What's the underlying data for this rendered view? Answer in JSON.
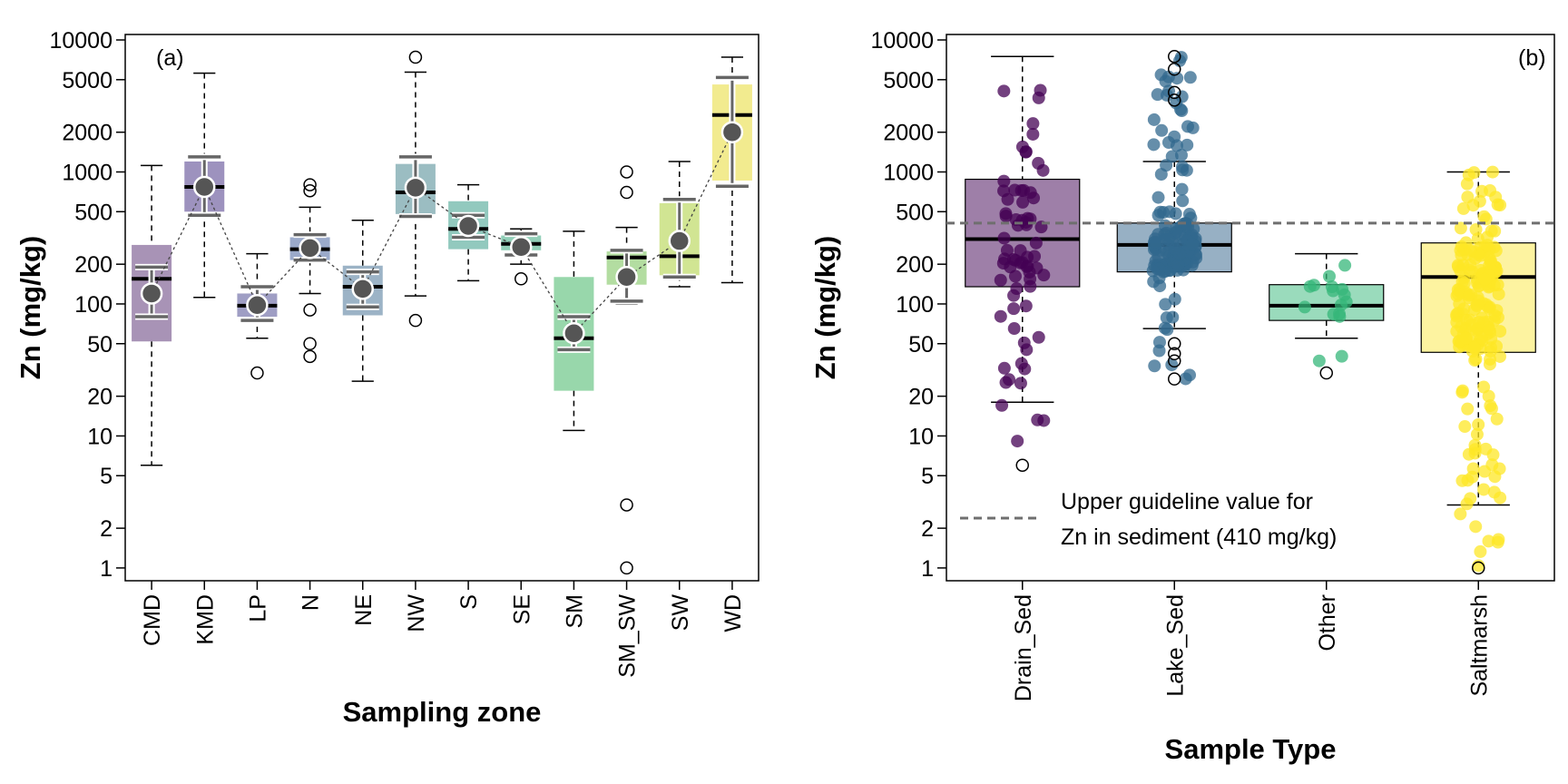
{
  "chart_data": [
    {
      "type": "box",
      "panel_label": "(a)",
      "xlabel": "Sampling zone",
      "ylabel": "Zn (mg/kg)",
      "yscale": "log",
      "ylim": [
        0.8,
        11000
      ],
      "yticks": [
        1,
        2,
        5,
        10,
        20,
        50,
        100,
        200,
        500,
        1000,
        2000,
        5000,
        10000
      ],
      "categories": [
        "CMD",
        "KMD",
        "LP",
        "N",
        "NE",
        "NW",
        "S",
        "SE",
        "SM",
        "SM_SW",
        "SW",
        "WD"
      ],
      "boxes": [
        {
          "q1": 52,
          "median": 155,
          "q3": 280,
          "whisker_low": 6,
          "whisker_high": 1120,
          "mean": 120,
          "ci_low": 80,
          "ci_high": 190,
          "outliers": [],
          "color": "#8b6f9e"
        },
        {
          "q1": 500,
          "median": 770,
          "q3": 1200,
          "whisker_low": 112,
          "whisker_high": 5600,
          "mean": 770,
          "ci_low": 470,
          "ci_high": 1300,
          "outliers": [],
          "color": "#7c6ea8"
        },
        {
          "q1": 80,
          "median": 97,
          "q3": 120,
          "whisker_low": 55,
          "whisker_high": 240,
          "mean": 98,
          "ci_low": 75,
          "ci_high": 135,
          "outliers": [
            30
          ],
          "color": "#7f7db0"
        },
        {
          "q1": 215,
          "median": 260,
          "q3": 320,
          "whisker_low": 120,
          "whisker_high": 540,
          "mean": 265,
          "ci_low": 215,
          "ci_high": 335,
          "outliers": [
            40,
            50,
            90,
            720,
            800
          ],
          "color": "#7a8eb8"
        },
        {
          "q1": 82,
          "median": 135,
          "q3": 195,
          "whisker_low": 26,
          "whisker_high": 430,
          "mean": 130,
          "ci_low": 95,
          "ci_high": 175,
          "outliers": [],
          "color": "#7b9ab3"
        },
        {
          "q1": 480,
          "median": 700,
          "q3": 1150,
          "whisker_low": 115,
          "whisker_high": 5700,
          "mean": 760,
          "ci_low": 460,
          "ci_high": 1300,
          "outliers": [
            75,
            7400
          ],
          "color": "#7aa7ad"
        },
        {
          "q1": 260,
          "median": 370,
          "q3": 600,
          "whisker_low": 150,
          "whisker_high": 800,
          "mean": 390,
          "ci_low": 320,
          "ci_high": 470,
          "outliers": [],
          "color": "#6db7a8"
        },
        {
          "q1": 255,
          "median": 285,
          "q3": 330,
          "whisker_low": 200,
          "whisker_high": 370,
          "mean": 270,
          "ci_low": 235,
          "ci_high": 340,
          "outliers": [
            155
          ],
          "color": "#6dbfa0"
        },
        {
          "q1": 22,
          "median": 55,
          "q3": 160,
          "whisker_low": 11,
          "whisker_high": 355,
          "mean": 60,
          "ci_low": 45,
          "ci_high": 80,
          "outliers": [],
          "color": "#76c98f"
        },
        {
          "q1": 140,
          "median": 225,
          "q3": 250,
          "whisker_low": 100,
          "whisker_high": 380,
          "mean": 160,
          "ci_low": 105,
          "ci_high": 255,
          "outliers": [
            1,
            3,
            700,
            1000
          ],
          "color": "#99d181"
        },
        {
          "q1": 165,
          "median": 230,
          "q3": 580,
          "whisker_low": 135,
          "whisker_high": 1200,
          "mean": 300,
          "ci_low": 160,
          "ci_high": 620,
          "outliers": [],
          "color": "#c2dc6f"
        },
        {
          "q1": 860,
          "median": 2700,
          "q3": 4600,
          "whisker_low": 145,
          "whisker_high": 7400,
          "mean": 2000,
          "ci_low": 780,
          "ci_high": 5200,
          "outliers": [],
          "color": "#ede46a"
        }
      ]
    },
    {
      "type": "box",
      "panel_label": "(b)",
      "xlabel": "Sample Type",
      "ylabel": "Zn (mg/kg)",
      "yscale": "log",
      "ylim": [
        0.8,
        11000
      ],
      "yticks": [
        1,
        2,
        5,
        10,
        20,
        50,
        100,
        200,
        500,
        1000,
        2000,
        5000,
        10000
      ],
      "categories": [
        "Drain_Sed",
        "Lake_Sed",
        "Other",
        "Saltmarsh"
      ],
      "boxes": [
        {
          "q1": 135,
          "median": 310,
          "q3": 880,
          "whisker_low": 18,
          "whisker_high": 7500,
          "outliers": [
            6
          ],
          "color": "#440154",
          "box_fill": "#9e7fa8"
        },
        {
          "q1": 175,
          "median": 280,
          "q3": 410,
          "whisker_low": 65,
          "whisker_high": 1200,
          "outliers": [
            27,
            37,
            42,
            50,
            3500,
            4000,
            6000,
            7500
          ],
          "color": "#31688e",
          "box_fill": "#97b0c4"
        },
        {
          "q1": 75,
          "median": 97,
          "q3": 140,
          "whisker_low": 55,
          "whisker_high": 240,
          "outliers": [
            30
          ],
          "color": "#35b779",
          "box_fill": "#9adbbc"
        },
        {
          "q1": 43,
          "median": 160,
          "q3": 290,
          "whisker_low": 3,
          "whisker_high": 1000,
          "outliers": [
            1
          ],
          "color": "#fde725",
          "box_fill": "#fdf3a0"
        }
      ],
      "jitter_points": [
        {
          "category": "Drain_Sed",
          "n": 70,
          "range": [
            6,
            7500
          ]
        },
        {
          "category": "Lake_Sed",
          "n": 160,
          "range": [
            27,
            7500
          ]
        },
        {
          "category": "Other",
          "n": 16,
          "range": [
            30,
            240
          ]
        },
        {
          "category": "Saltmarsh",
          "n": 200,
          "range": [
            1,
            1000
          ]
        }
      ],
      "reference_line": {
        "value": 410,
        "label_line1": "Upper guideline value for",
        "label_line2": "Zn in  sediment (410 mg/kg)"
      }
    }
  ],
  "colors": {
    "axis": "#000000",
    "error_bar": "#666666",
    "mean_point": "#555555",
    "reference_line": "#6f6f6f"
  }
}
